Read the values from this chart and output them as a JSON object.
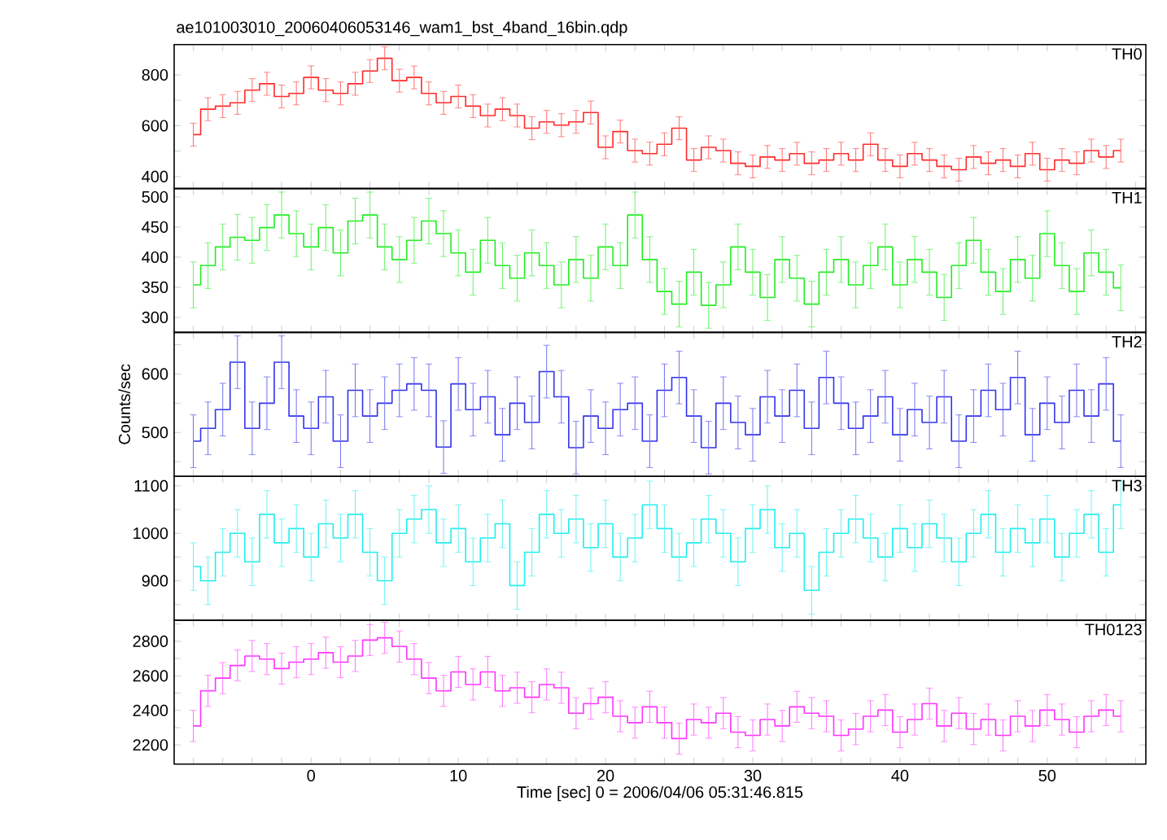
{
  "chart_data": [
    {
      "type": "step",
      "title": "ae101003010_20060406053146_wam1_bst_4band_16bin.qdp",
      "annotations": [
        "TH0"
      ],
      "tick_labels": "y",
      "color": "#ff2a2a",
      "x": [
        -8,
        -7,
        -6,
        -5,
        -4,
        -3,
        -2,
        -1,
        0,
        1,
        2,
        3,
        4,
        5,
        6,
        7,
        8,
        9,
        10,
        11,
        12,
        13,
        14,
        15,
        16,
        17,
        18,
        19,
        20,
        21,
        22,
        23,
        24,
        25,
        26,
        27,
        28,
        29,
        30,
        31,
        32,
        33,
        34,
        35,
        36,
        37,
        38,
        39,
        40,
        41,
        42,
        43,
        44,
        45,
        46,
        47,
        48,
        49,
        50,
        51,
        52,
        53,
        54,
        55
      ],
      "values": [
        565,
        665,
        677,
        690,
        740,
        765,
        715,
        727,
        790,
        740,
        727,
        765,
        815,
        865,
        777,
        790,
        727,
        690,
        715,
        677,
        640,
        665,
        640,
        590,
        615,
        602,
        615,
        652,
        515,
        577,
        502,
        490,
        527,
        590,
        465,
        515,
        502,
        452,
        440,
        477,
        465,
        490,
        452,
        465,
        490,
        465,
        527,
        465,
        440,
        490,
        465,
        440,
        427,
        477,
        452,
        465,
        440,
        490,
        427,
        465,
        452,
        502,
        477,
        502
      ],
      "errors": [
        45,
        45,
        45,
        45,
        45,
        45,
        45,
        45,
        45,
        45,
        45,
        45,
        45,
        45,
        45,
        45,
        45,
        45,
        45,
        45,
        45,
        45,
        45,
        45,
        45,
        45,
        45,
        45,
        45,
        45,
        45,
        45,
        45,
        45,
        45,
        45,
        45,
        45,
        45,
        45,
        45,
        45,
        45,
        45,
        45,
        45,
        45,
        45,
        45,
        45,
        45,
        45,
        45,
        45,
        45,
        45,
        45,
        45,
        45,
        45,
        45,
        45,
        45,
        45
      ],
      "xlim": [
        -9.3,
        56.7
      ],
      "ylim": [
        353,
        919
      ],
      "xticks": [
        {
          "value": -8,
          "label": null
        },
        {
          "value": -6,
          "label": null
        },
        {
          "value": -4,
          "label": null
        },
        {
          "value": -2,
          "label": null
        },
        0,
        {
          "value": 2,
          "label": null
        },
        {
          "value": 4,
          "label": null
        },
        {
          "value": 6,
          "label": null
        },
        {
          "value": 8,
          "label": null
        },
        10,
        {
          "value": 12,
          "label": null
        },
        {
          "value": 14,
          "label": null
        },
        {
          "value": 16,
          "label": null
        },
        {
          "value": 18,
          "label": null
        },
        20,
        {
          "value": 22,
          "label": null
        },
        {
          "value": 24,
          "label": null
        },
        {
          "value": 26,
          "label": null
        },
        {
          "value": 28,
          "label": null
        },
        30,
        {
          "value": 32,
          "label": null
        },
        {
          "value": 34,
          "label": null
        },
        {
          "value": 36,
          "label": null
        },
        {
          "value": 38,
          "label": null
        },
        40,
        {
          "value": 42,
          "label": null
        },
        {
          "value": 44,
          "label": null
        },
        {
          "value": 46,
          "label": null
        },
        {
          "value": 48,
          "label": null
        },
        50,
        {
          "value": 52,
          "label": null
        },
        {
          "value": 54,
          "label": null
        },
        {
          "value": 56,
          "label": null
        }
      ],
      "yticks": [
        400,
        {
          "value": 500,
          "label": null
        },
        600,
        {
          "value": 700,
          "label": null
        },
        800
      ]
    },
    {
      "type": "step",
      "annotations": [
        "TH1"
      ],
      "tick_labels": "y",
      "color": "#22ee22",
      "x": [
        -8,
        -7,
        -6,
        -5,
        -4,
        -3,
        -2,
        -1,
        0,
        1,
        2,
        3,
        4,
        5,
        6,
        7,
        8,
        9,
        10,
        11,
        12,
        13,
        14,
        15,
        16,
        17,
        18,
        19,
        20,
        21,
        22,
        23,
        24,
        25,
        26,
        27,
        28,
        29,
        30,
        31,
        32,
        33,
        34,
        35,
        36,
        37,
        38,
        39,
        40,
        41,
        42,
        43,
        44,
        45,
        46,
        47,
        48,
        49,
        50,
        51,
        52,
        53,
        54,
        55
      ],
      "values": [
        354,
        386,
        417,
        433,
        428,
        449,
        470,
        439,
        417,
        449,
        407,
        460,
        470,
        417,
        396,
        428,
        460,
        439,
        407,
        375,
        428,
        386,
        365,
        407,
        386,
        354,
        396,
        365,
        417,
        386,
        470,
        396,
        343,
        322,
        375,
        320,
        354,
        417,
        375,
        333,
        396,
        365,
        322,
        375,
        396,
        354,
        386,
        417,
        354,
        396,
        375,
        333,
        386,
        428,
        375,
        343,
        396,
        365,
        439,
        386,
        343,
        407,
        375,
        349
      ],
      "errors": [
        38,
        38,
        38,
        38,
        38,
        38,
        38,
        38,
        38,
        38,
        38,
        38,
        38,
        38,
        38,
        38,
        38,
        38,
        38,
        38,
        38,
        38,
        38,
        38,
        38,
        38,
        38,
        38,
        38,
        38,
        38,
        38,
        38,
        38,
        38,
        38,
        38,
        38,
        38,
        38,
        38,
        38,
        38,
        38,
        38,
        38,
        38,
        38,
        38,
        38,
        38,
        38,
        38,
        38,
        38,
        38,
        38,
        38,
        38,
        38,
        38,
        38,
        38,
        38
      ],
      "xlim": [
        -9.3,
        56.7
      ],
      "ylim": [
        275,
        514
      ],
      "xticks": [
        {
          "value": -8,
          "label": null
        },
        {
          "value": -6,
          "label": null
        },
        {
          "value": -4,
          "label": null
        },
        {
          "value": -2,
          "label": null
        },
        0,
        {
          "value": 2,
          "label": null
        },
        {
          "value": 4,
          "label": null
        },
        {
          "value": 6,
          "label": null
        },
        {
          "value": 8,
          "label": null
        },
        10,
        {
          "value": 12,
          "label": null
        },
        {
          "value": 14,
          "label": null
        },
        {
          "value": 16,
          "label": null
        },
        {
          "value": 18,
          "label": null
        },
        20,
        {
          "value": 22,
          "label": null
        },
        {
          "value": 24,
          "label": null
        },
        {
          "value": 26,
          "label": null
        },
        {
          "value": 28,
          "label": null
        },
        30,
        {
          "value": 32,
          "label": null
        },
        {
          "value": 34,
          "label": null
        },
        {
          "value": 36,
          "label": null
        },
        {
          "value": 38,
          "label": null
        },
        40,
        {
          "value": 42,
          "label": null
        },
        {
          "value": 44,
          "label": null
        },
        {
          "value": 46,
          "label": null
        },
        {
          "value": 48,
          "label": null
        },
        50,
        {
          "value": 52,
          "label": null
        },
        {
          "value": 54,
          "label": null
        },
        {
          "value": 56,
          "label": null
        }
      ],
      "yticks": [
        300,
        350,
        400,
        450,
        500
      ]
    },
    {
      "type": "step",
      "annotations": [
        "TH2"
      ],
      "tick_labels": "y",
      "color": "#3333ee",
      "ylabel": "Counts/sec",
      "x": [
        -8,
        -7,
        -6,
        -5,
        -4,
        -3,
        -2,
        -1,
        0,
        1,
        2,
        3,
        4,
        5,
        6,
        7,
        8,
        9,
        10,
        11,
        12,
        13,
        14,
        15,
        16,
        17,
        18,
        19,
        20,
        21,
        22,
        23,
        24,
        25,
        26,
        27,
        28,
        29,
        30,
        31,
        32,
        33,
        34,
        35,
        36,
        37,
        38,
        39,
        40,
        41,
        42,
        43,
        44,
        45,
        46,
        47,
        48,
        49,
        50,
        51,
        52,
        53,
        54,
        55
      ],
      "values": [
        485,
        507,
        539,
        620,
        507,
        550,
        620,
        528,
        507,
        561,
        485,
        572,
        528,
        550,
        572,
        583,
        572,
        475,
        583,
        539,
        561,
        496,
        550,
        517,
        604,
        561,
        474,
        528,
        507,
        539,
        550,
        485,
        572,
        594,
        528,
        474,
        550,
        517,
        496,
        561,
        528,
        572,
        507,
        594,
        550,
        507,
        528,
        561,
        496,
        539,
        517,
        561,
        485,
        528,
        572,
        539,
        594,
        496,
        550,
        517,
        572,
        528,
        583,
        485
      ],
      "errors": [
        45,
        45,
        45,
        45,
        45,
        45,
        45,
        45,
        45,
        45,
        45,
        45,
        45,
        45,
        45,
        45,
        45,
        45,
        45,
        45,
        45,
        45,
        45,
        45,
        45,
        45,
        45,
        45,
        45,
        45,
        45,
        45,
        45,
        45,
        45,
        45,
        45,
        45,
        45,
        45,
        45,
        45,
        45,
        45,
        45,
        45,
        45,
        45,
        45,
        45,
        45,
        45,
        45,
        45,
        45,
        45,
        45,
        45,
        45,
        45,
        45,
        45,
        45,
        45
      ],
      "xlim": [
        -9.3,
        56.7
      ],
      "ylim": [
        425,
        671
      ],
      "xticks": [
        {
          "value": -8,
          "label": null
        },
        {
          "value": -6,
          "label": null
        },
        {
          "value": -4,
          "label": null
        },
        {
          "value": -2,
          "label": null
        },
        0,
        {
          "value": 2,
          "label": null
        },
        {
          "value": 4,
          "label": null
        },
        {
          "value": 6,
          "label": null
        },
        {
          "value": 8,
          "label": null
        },
        10,
        {
          "value": 12,
          "label": null
        },
        {
          "value": 14,
          "label": null
        },
        {
          "value": 16,
          "label": null
        },
        {
          "value": 18,
          "label": null
        },
        20,
        {
          "value": 22,
          "label": null
        },
        {
          "value": 24,
          "label": null
        },
        {
          "value": 26,
          "label": null
        },
        {
          "value": 28,
          "label": null
        },
        30,
        {
          "value": 32,
          "label": null
        },
        {
          "value": 34,
          "label": null
        },
        {
          "value": 36,
          "label": null
        },
        {
          "value": 38,
          "label": null
        },
        40,
        {
          "value": 42,
          "label": null
        },
        {
          "value": 44,
          "label": null
        },
        {
          "value": 46,
          "label": null
        },
        {
          "value": 48,
          "label": null
        },
        50,
        {
          "value": 52,
          "label": null
        },
        {
          "value": 54,
          "label": null
        },
        {
          "value": 56,
          "label": null
        }
      ],
      "yticks": [
        {
          "value": 450,
          "label": null
        },
        500,
        {
          "value": 550,
          "label": null
        },
        600,
        {
          "value": 650,
          "label": null
        }
      ]
    },
    {
      "type": "step",
      "annotations": [
        "TH3"
      ],
      "tick_labels": "y",
      "color": "#22eeee",
      "x": [
        -8,
        -7,
        -6,
        -5,
        -4,
        -3,
        -2,
        -1,
        0,
        1,
        2,
        3,
        4,
        5,
        6,
        7,
        8,
        9,
        10,
        11,
        12,
        13,
        14,
        15,
        16,
        17,
        18,
        19,
        20,
        21,
        22,
        23,
        24,
        25,
        26,
        27,
        28,
        29,
        30,
        31,
        32,
        33,
        34,
        35,
        36,
        37,
        38,
        39,
        40,
        41,
        42,
        43,
        44,
        45,
        46,
        47,
        48,
        49,
        50,
        51,
        52,
        53,
        54,
        55
      ],
      "values": [
        930,
        900,
        960,
        1000,
        940,
        1040,
        980,
        1010,
        950,
        1020,
        990,
        1040,
        960,
        900,
        1000,
        1030,
        1050,
        980,
        1010,
        940,
        990,
        1020,
        890,
        960,
        1040,
        1000,
        1030,
        970,
        1020,
        950,
        990,
        1060,
        1010,
        950,
        980,
        1030,
        1000,
        940,
        1010,
        1050,
        970,
        1000,
        880,
        960,
        1000,
        1030,
        990,
        950,
        1010,
        970,
        1020,
        990,
        940,
        1000,
        1040,
        960,
        1010,
        980,
        1030,
        950,
        1000,
        1040,
        960,
        1060
      ],
      "errors": [
        50,
        50,
        50,
        50,
        50,
        50,
        50,
        50,
        50,
        50,
        50,
        50,
        50,
        50,
        50,
        50,
        50,
        50,
        50,
        50,
        50,
        50,
        50,
        50,
        50,
        50,
        50,
        50,
        50,
        50,
        50,
        50,
        50,
        50,
        50,
        50,
        50,
        50,
        50,
        50,
        50,
        50,
        50,
        50,
        50,
        50,
        50,
        50,
        50,
        50,
        50,
        50,
        50,
        50,
        50,
        50,
        50,
        50,
        50,
        50,
        50,
        50,
        50,
        50
      ],
      "xlim": [
        -9.3,
        56.7
      ],
      "ylim": [
        817,
        1120
      ],
      "xticks": [
        {
          "value": -8,
          "label": null
        },
        {
          "value": -6,
          "label": null
        },
        {
          "value": -4,
          "label": null
        },
        {
          "value": -2,
          "label": null
        },
        0,
        {
          "value": 2,
          "label": null
        },
        {
          "value": 4,
          "label": null
        },
        {
          "value": 6,
          "label": null
        },
        {
          "value": 8,
          "label": null
        },
        10,
        {
          "value": 12,
          "label": null
        },
        {
          "value": 14,
          "label": null
        },
        {
          "value": 16,
          "label": null
        },
        {
          "value": 18,
          "label": null
        },
        20,
        {
          "value": 22,
          "label": null
        },
        {
          "value": 24,
          "label": null
        },
        {
          "value": 26,
          "label": null
        },
        {
          "value": 28,
          "label": null
        },
        30,
        {
          "value": 32,
          "label": null
        },
        {
          "value": 34,
          "label": null
        },
        {
          "value": 36,
          "label": null
        },
        {
          "value": 38,
          "label": null
        },
        40,
        {
          "value": 42,
          "label": null
        },
        {
          "value": 44,
          "label": null
        },
        {
          "value": 46,
          "label": null
        },
        {
          "value": 48,
          "label": null
        },
        50,
        {
          "value": 52,
          "label": null
        },
        {
          "value": 54,
          "label": null
        },
        {
          "value": 56,
          "label": null
        }
      ],
      "yticks": [
        {
          "value": 850,
          "label": null
        },
        900,
        {
          "value": 950,
          "label": null
        },
        1000,
        {
          "value": 1050,
          "label": null
        },
        1100
      ]
    },
    {
      "type": "step",
      "annotations": [
        "TH0123"
      ],
      "color": "#ff33ff",
      "xlabel": "Time [sec] 0 = 2006/04/06 05:31:46.815",
      "x": [
        -8,
        -7,
        -6,
        -5,
        -4,
        -3,
        -2,
        -1,
        0,
        1,
        2,
        3,
        4,
        5,
        6,
        7,
        8,
        9,
        10,
        11,
        12,
        13,
        14,
        15,
        16,
        17,
        18,
        19,
        20,
        21,
        22,
        23,
        24,
        25,
        26,
        27,
        28,
        29,
        30,
        31,
        32,
        33,
        34,
        35,
        36,
        37,
        38,
        39,
        40,
        41,
        42,
        43,
        44,
        45,
        46,
        47,
        48,
        49,
        50,
        51,
        52,
        53,
        54,
        55
      ],
      "values": [
        2310,
        2513,
        2587,
        2660,
        2715,
        2697,
        2642,
        2679,
        2697,
        2734,
        2679,
        2715,
        2807,
        2820,
        2770,
        2697,
        2587,
        2513,
        2623,
        2550,
        2623,
        2513,
        2531,
        2476,
        2550,
        2531,
        2384,
        2439,
        2476,
        2366,
        2329,
        2421,
        2329,
        2237,
        2347,
        2329,
        2384,
        2274,
        2255,
        2347,
        2310,
        2421,
        2384,
        2366,
        2255,
        2292,
        2366,
        2402,
        2274,
        2347,
        2439,
        2310,
        2384,
        2292,
        2347,
        2255,
        2366,
        2310,
        2402,
        2347,
        2274,
        2366,
        2402,
        2366
      ],
      "errors": [
        90,
        90,
        90,
        90,
        90,
        90,
        90,
        90,
        90,
        90,
        90,
        90,
        90,
        90,
        90,
        90,
        90,
        90,
        90,
        90,
        90,
        90,
        90,
        90,
        90,
        90,
        90,
        90,
        90,
        90,
        90,
        90,
        90,
        90,
        90,
        90,
        90,
        90,
        90,
        90,
        90,
        90,
        90,
        90,
        90,
        90,
        90,
        90,
        90,
        90,
        90,
        90,
        90,
        90,
        90,
        90,
        90,
        90,
        90,
        90,
        90,
        90,
        90,
        90
      ],
      "xlim": [
        -9.3,
        56.7
      ],
      "ylim": [
        2089,
        2922
      ],
      "xticks": [
        {
          "value": -8,
          "label": null
        },
        {
          "value": -6,
          "label": null
        },
        {
          "value": -4,
          "label": null
        },
        {
          "value": -2,
          "label": null
        },
        0,
        {
          "value": 2,
          "label": null
        },
        {
          "value": 4,
          "label": null
        },
        {
          "value": 6,
          "label": null
        },
        {
          "value": 8,
          "label": null
        },
        10,
        {
          "value": 12,
          "label": null
        },
        {
          "value": 14,
          "label": null
        },
        {
          "value": 16,
          "label": null
        },
        {
          "value": 18,
          "label": null
        },
        20,
        {
          "value": 22,
          "label": null
        },
        {
          "value": 24,
          "label": null
        },
        {
          "value": 26,
          "label": null
        },
        {
          "value": 28,
          "label": null
        },
        30,
        {
          "value": 32,
          "label": null
        },
        {
          "value": 34,
          "label": null
        },
        {
          "value": 36,
          "label": null
        },
        {
          "value": 38,
          "label": null
        },
        40,
        {
          "value": 42,
          "label": null
        },
        {
          "value": 44,
          "label": null
        },
        {
          "value": 46,
          "label": null
        },
        {
          "value": 48,
          "label": null
        },
        50,
        {
          "value": 52,
          "label": null
        },
        {
          "value": 54,
          "label": null
        },
        {
          "value": 56,
          "label": null
        }
      ],
      "yticks": [
        2200,
        {
          "value": 2300,
          "label": null
        },
        2400,
        {
          "value": 2500,
          "label": null
        },
        2600,
        {
          "value": 2700,
          "label": null
        },
        2800,
        {
          "value": 2900,
          "label": null
        }
      ]
    }
  ]
}
